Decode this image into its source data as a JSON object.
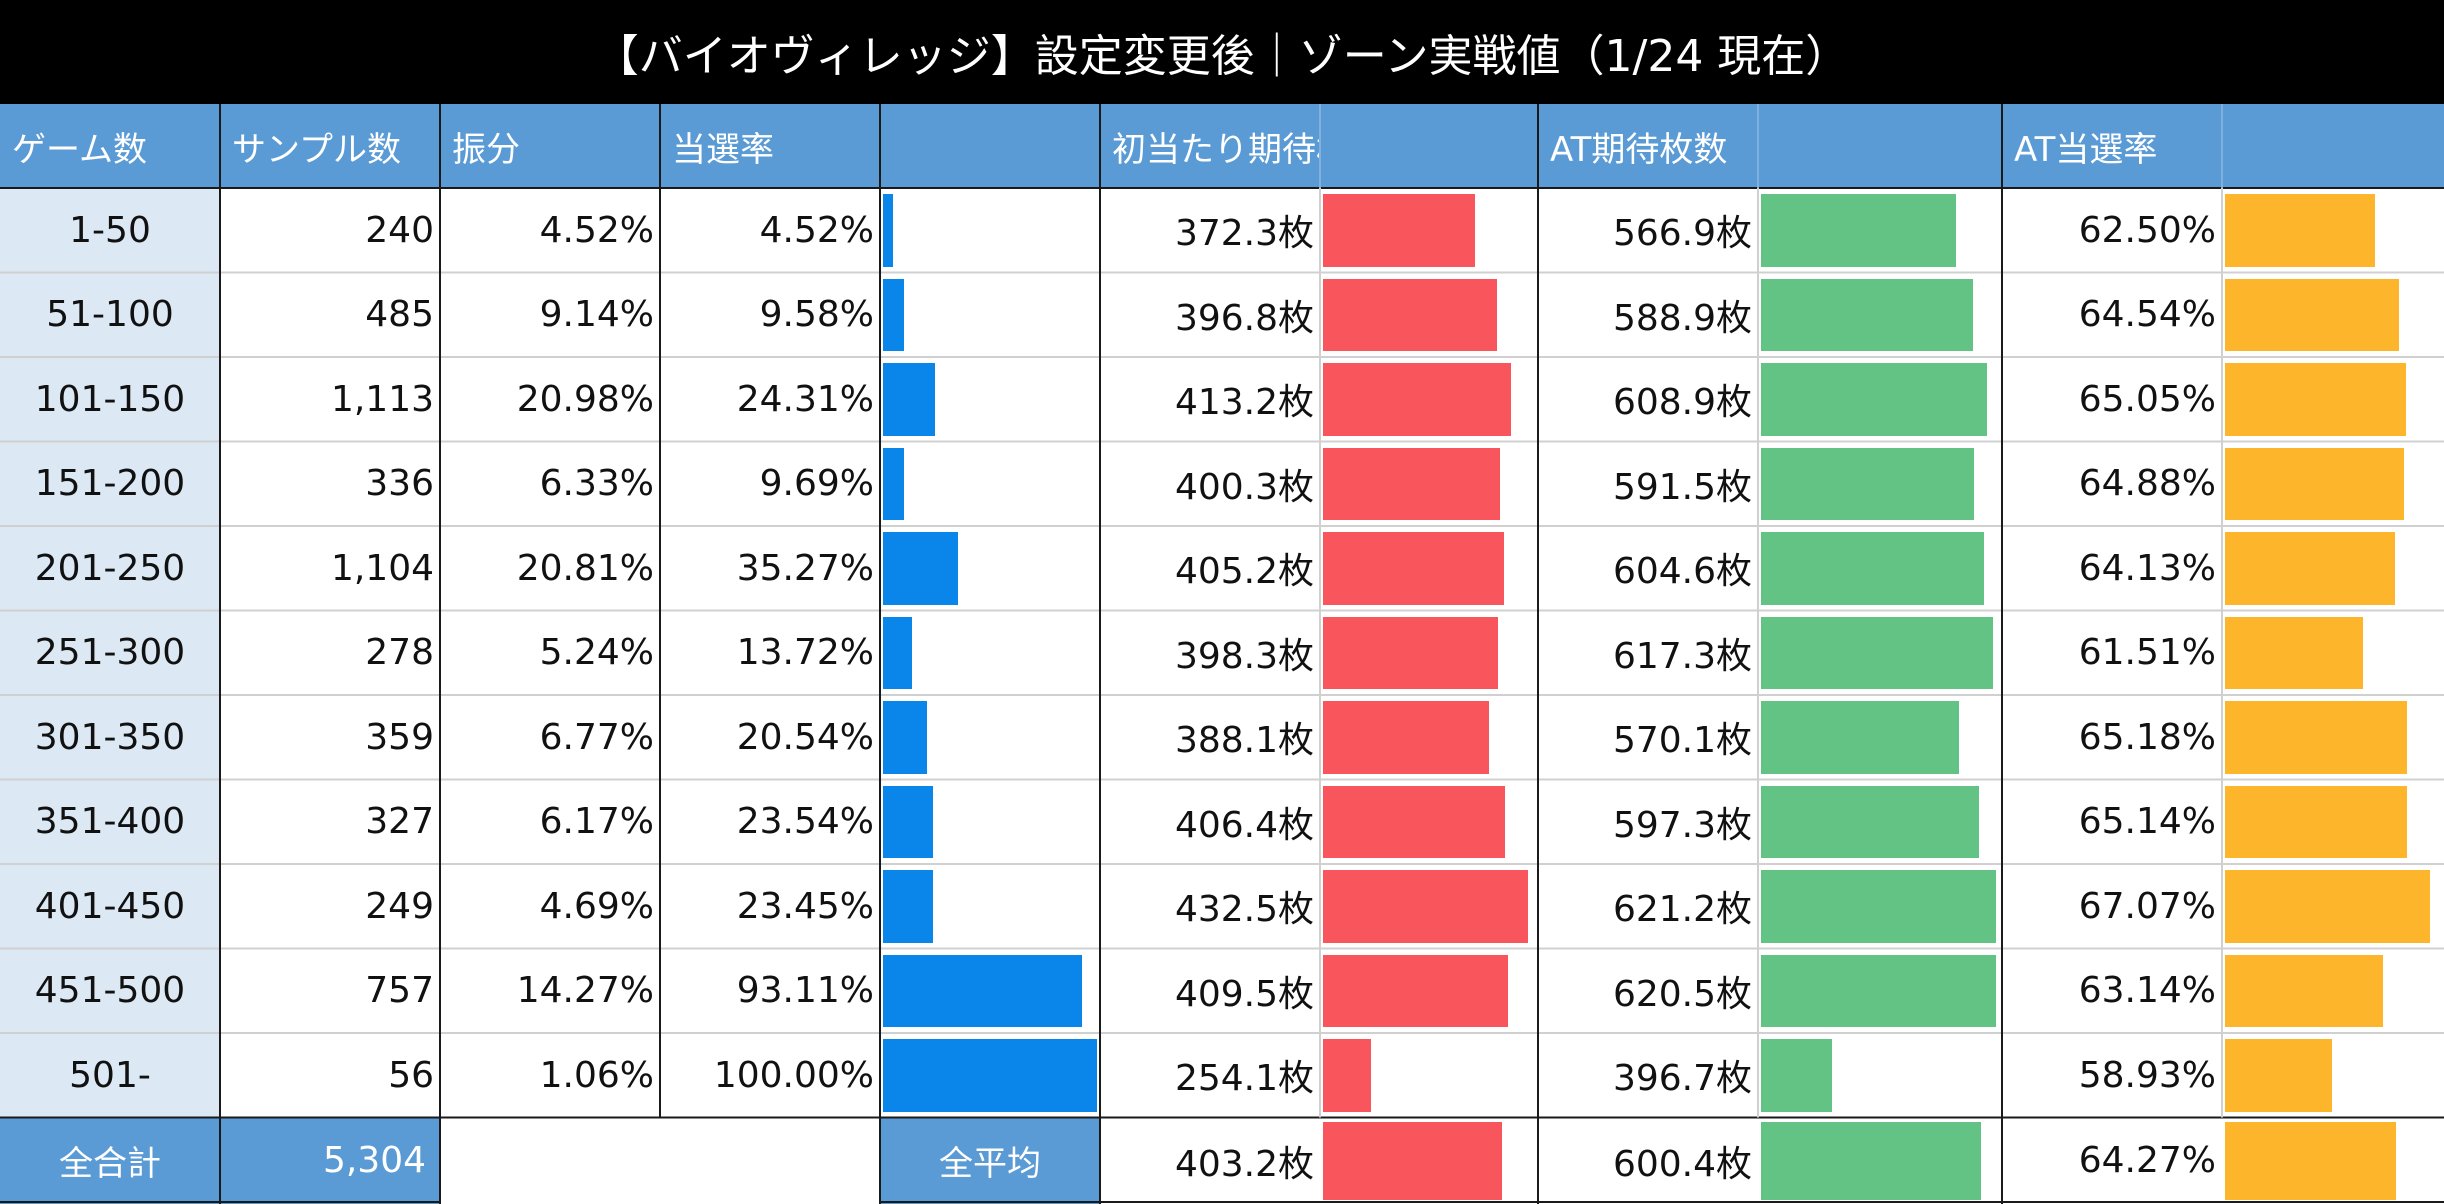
{
  "title": "【バイオヴィレッジ】設定変更後｜ゾーン実戦値（1/24 現在）",
  "headers": [
    "ゲーム数",
    "サンプル数",
    "振分",
    "当選率",
    "",
    "初当たり期待枚数",
    "",
    "AT期待枚数",
    "",
    "AT当選率",
    ""
  ],
  "rows": [
    {
      "zone": "1-50",
      "samples": "240",
      "share": "4.52%",
      "rate": "4.52%",
      "first_medals": "372.3枚",
      "at_medals": "566.9枚",
      "at_rate": "62.50%"
    },
    {
      "zone": "51-100",
      "samples": "485",
      "share": "9.14%",
      "rate": "9.58%",
      "first_medals": "396.8枚",
      "at_medals": "588.9枚",
      "at_rate": "64.54%"
    },
    {
      "zone": "101-150",
      "samples": "1,113",
      "share": "20.98%",
      "rate": "24.31%",
      "first_medals": "413.2枚",
      "at_medals": "608.9枚",
      "at_rate": "65.05%"
    },
    {
      "zone": "151-200",
      "samples": "336",
      "share": "6.33%",
      "rate": "9.69%",
      "first_medals": "400.3枚",
      "at_medals": "591.5枚",
      "at_rate": "64.88%"
    },
    {
      "zone": "201-250",
      "samples": "1,104",
      "share": "20.81%",
      "rate": "35.27%",
      "first_medals": "405.2枚",
      "at_medals": "604.6枚",
      "at_rate": "64.13%"
    },
    {
      "zone": "251-300",
      "samples": "278",
      "share": "5.24%",
      "rate": "13.72%",
      "first_medals": "398.3枚",
      "at_medals": "617.3枚",
      "at_rate": "61.51%"
    },
    {
      "zone": "301-350",
      "samples": "359",
      "share": "6.77%",
      "rate": "20.54%",
      "first_medals": "388.1枚",
      "at_medals": "570.1枚",
      "at_rate": "65.18%"
    },
    {
      "zone": "351-400",
      "samples": "327",
      "share": "6.17%",
      "rate": "23.54%",
      "first_medals": "406.4枚",
      "at_medals": "597.3枚",
      "at_rate": "65.14%"
    },
    {
      "zone": "401-450",
      "samples": "249",
      "share": "4.69%",
      "rate": "23.45%",
      "first_medals": "432.5枚",
      "at_medals": "621.2枚",
      "at_rate": "67.07%"
    },
    {
      "zone": "451-500",
      "samples": "757",
      "share": "14.27%",
      "rate": "93.11%",
      "first_medals": "409.5枚",
      "at_medals": "620.5枚",
      "at_rate": "63.14%"
    },
    {
      "zone": "501-",
      "samples": "56",
      "share": "1.06%",
      "rate": "100.00%",
      "first_medals": "254.1枚",
      "at_medals": "396.7枚",
      "at_rate": "58.93%"
    }
  ],
  "totals": {
    "total_label": "全合計",
    "total_samples": "5,304",
    "average_label": "全平均",
    "avg_first_medals": "403.2枚",
    "avg_at_medals": "600.4枚",
    "avg_at_rate": "64.27%"
  },
  "bar_values": {
    "rate": [
      4.52,
      9.58,
      24.31,
      9.69,
      35.27,
      13.72,
      20.54,
      23.54,
      23.45,
      93.11,
      100.0
    ],
    "first_medals": [
      372.3,
      396.8,
      413.2,
      400.3,
      405.2,
      398.3,
      388.1,
      406.4,
      432.5,
      409.5,
      254.1
    ],
    "at_medals": [
      566.9,
      588.9,
      608.9,
      591.5,
      604.6,
      617.3,
      570.1,
      597.3,
      621.2,
      620.5,
      396.7
    ],
    "at_rate": [
      62.5,
      64.54,
      65.05,
      64.88,
      64.13,
      61.51,
      65.18,
      65.14,
      67.07,
      63.14,
      58.93
    ],
    "avg_first_medals": 403.2,
    "avg_at_medals": 600.4,
    "avg_at_rate": 64.27
  },
  "colors": {
    "header_bg": "#5b9bd5",
    "label_bg": "#dce9f5",
    "rate_bar": "#0a86ea",
    "first_bar": "#f8555c",
    "at_bar": "#63c384",
    "at_rate_bar": "#fdb52b"
  }
}
